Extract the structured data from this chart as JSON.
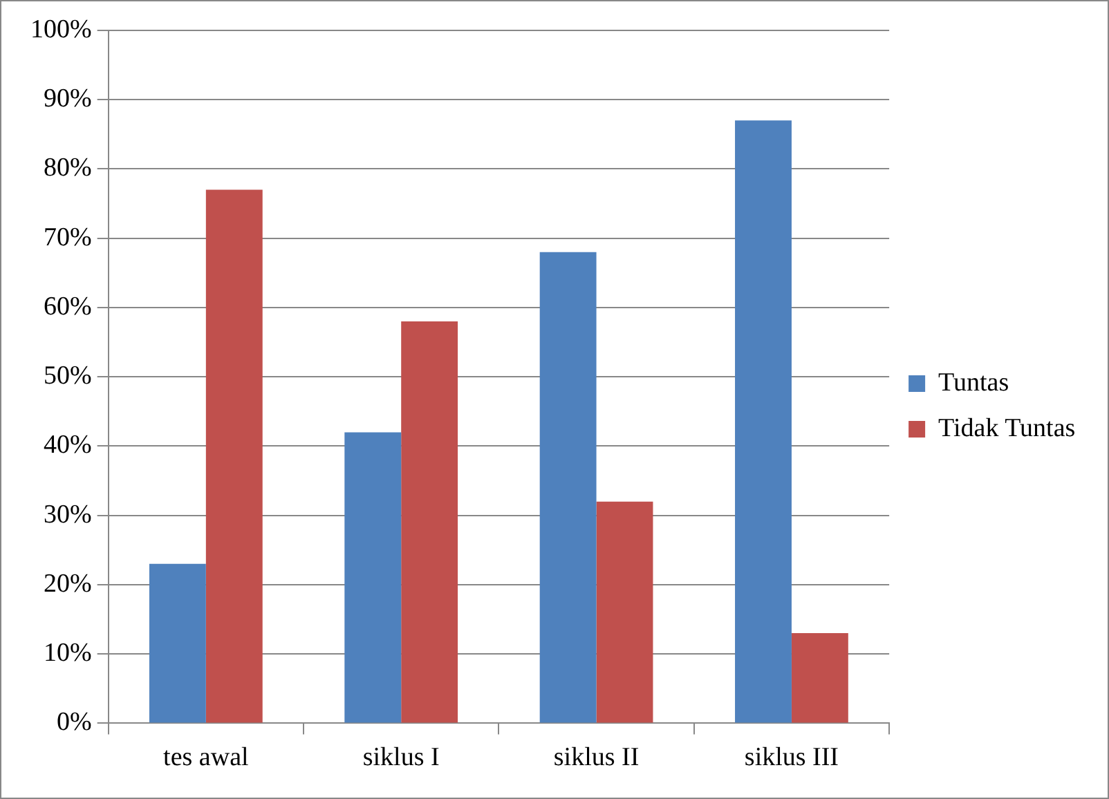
{
  "chart_data": {
    "type": "bar",
    "categories": [
      "tes awal",
      "siklus I",
      "siklus II",
      "siklus III"
    ],
    "series": [
      {
        "name": "Tuntas",
        "color": "#4f81bd",
        "values": [
          23,
          42,
          68,
          87
        ]
      },
      {
        "name": "Tidak Tuntas",
        "color": "#c0504d",
        "values": [
          77,
          58,
          32,
          13
        ]
      }
    ],
    "ylim": [
      0,
      100
    ],
    "yticks": [
      {
        "value": 0,
        "label": "0%"
      },
      {
        "value": 10,
        "label": "10%"
      },
      {
        "value": 20,
        "label": "20%"
      },
      {
        "value": 30,
        "label": "30%"
      },
      {
        "value": 40,
        "label": "40%"
      },
      {
        "value": 50,
        "label": "50%"
      },
      {
        "value": 60,
        "label": "60%"
      },
      {
        "value": 70,
        "label": "70%"
      },
      {
        "value": 80,
        "label": "80%"
      },
      {
        "value": 90,
        "label": "90%"
      },
      {
        "value": 100,
        "label": "100%"
      }
    ],
    "grid": "y",
    "legend": "right"
  }
}
